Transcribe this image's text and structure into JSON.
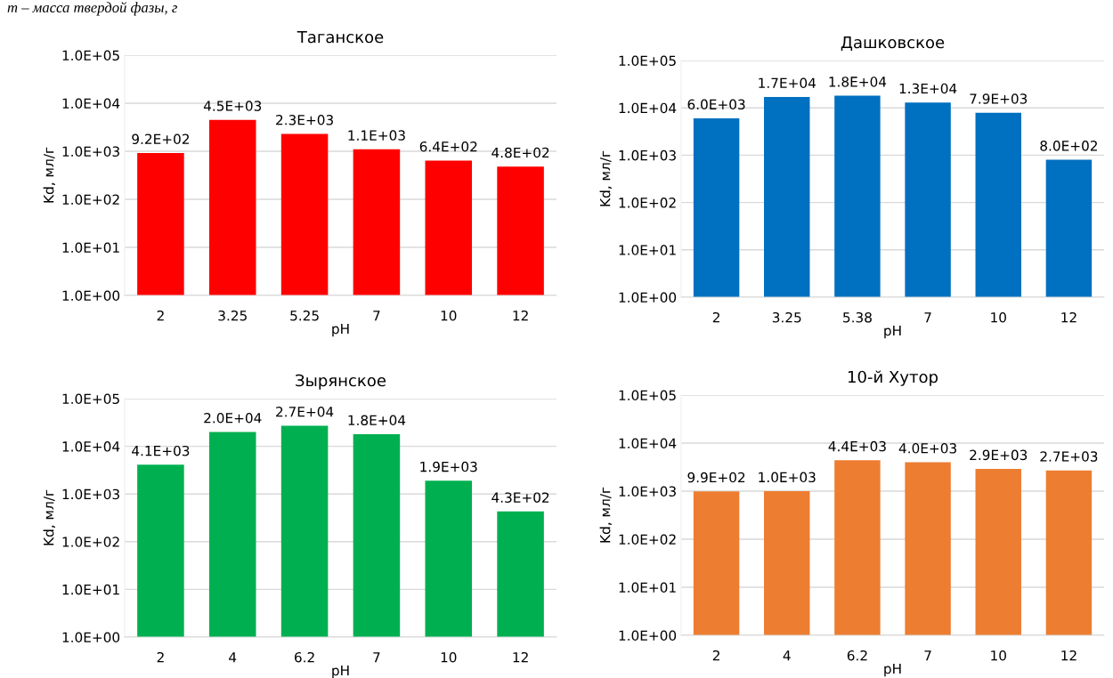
{
  "chart_data": [
    {
      "type": "bar",
      "title": "Таганское",
      "xlabel": "pH",
      "ylabel": "Kd, мл/г",
      "annotations": [
        "m – масса твердой фазы, г"
      ],
      "categories": [
        "2",
        "3.25",
        "5.25",
        "7",
        "10",
        "12"
      ],
      "values": [
        920,
        4500,
        2300,
        1100,
        640,
        480
      ],
      "value_labels": [
        "9.2E+02",
        "4.5E+03",
        "2.3E+03",
        "1.1E+03",
        "6.4E+02",
        "4.8E+02"
      ],
      "colors": [
        "#ff0000",
        "#ff0000",
        "#ff0000",
        "#ff0000",
        "#ff0000",
        "#ff0000"
      ],
      "log": true,
      "ylim": [
        1,
        100000
      ],
      "yticks": [
        {
          "value": 1,
          "label": "1.0E+00"
        },
        {
          "value": 10,
          "label": "1.0E+01"
        },
        {
          "value": 100,
          "label": "1.0E+02"
        },
        {
          "value": 1000,
          "label": "1.0E+03"
        },
        {
          "value": 10000,
          "label": "1.0E+04"
        },
        {
          "value": 100000,
          "label": "1.0E+05"
        }
      ],
      "grid": "y"
    },
    {
      "type": "bar",
      "title": "Дашковское",
      "xlabel": "pH",
      "ylabel": "Kd, мл/г",
      "categories": [
        "2",
        "3.25",
        "5.38",
        "7",
        "10",
        "12"
      ],
      "values": [
        6000,
        17000,
        18000,
        13000,
        7900,
        800
      ],
      "value_labels": [
        "6.0E+03",
        "1.7E+04",
        "1.8E+04",
        "1.3E+04",
        "7.9E+03",
        "8.0E+02"
      ],
      "colors": [
        "#0070c0",
        "#0070c0",
        "#0070c0",
        "#0070c0",
        "#0070c0",
        "#0070c0"
      ],
      "log": true,
      "ylim": [
        1,
        100000
      ],
      "yticks": [
        {
          "value": 1,
          "label": "1.0E+00"
        },
        {
          "value": 10,
          "label": "1.0E+01"
        },
        {
          "value": 100,
          "label": "1.0E+02"
        },
        {
          "value": 1000,
          "label": "1.0E+03"
        },
        {
          "value": 10000,
          "label": "1.0E+04"
        },
        {
          "value": 100000,
          "label": "1.0E+05"
        }
      ],
      "grid": "y"
    },
    {
      "type": "bar",
      "title": "Зырянское",
      "xlabel": "pH",
      "ylabel": "Kd, мл/г",
      "categories": [
        "2",
        "4",
        "6.2",
        "7",
        "10",
        "12"
      ],
      "values": [
        4100,
        20000,
        27000,
        18000,
        1900,
        430
      ],
      "value_labels": [
        "4.1E+03",
        "2.0E+04",
        "2.7E+04",
        "1.8E+04",
        "1.9E+03",
        "4.3E+02"
      ],
      "colors": [
        "#00b050",
        "#00b050",
        "#00b050",
        "#00b050",
        "#00b050",
        "#00b050"
      ],
      "log": true,
      "ylim": [
        1,
        100000
      ],
      "yticks": [
        {
          "value": 1,
          "label": "1.0E+00"
        },
        {
          "value": 10,
          "label": "1.0E+01"
        },
        {
          "value": 100,
          "label": "1.0E+02"
        },
        {
          "value": 1000,
          "label": "1.0E+03"
        },
        {
          "value": 10000,
          "label": "1.0E+04"
        },
        {
          "value": 100000,
          "label": "1.0E+05"
        }
      ],
      "grid": "y"
    },
    {
      "type": "bar",
      "title": "10-й Хутор",
      "xlabel": "pH",
      "ylabel": "Kd, мл/г",
      "categories": [
        "2",
        "4",
        "6.2",
        "7",
        "10",
        "12"
      ],
      "values": [
        990,
        1000,
        4400,
        4000,
        2900,
        2700
      ],
      "value_labels": [
        "9.9E+02",
        "1.0E+03",
        "4.4E+03",
        "4.0E+03",
        "2.9E+03",
        "2.7E+03"
      ],
      "colors": [
        "#ed7d31",
        "#ed7d31",
        "#ed7d31",
        "#ed7d31",
        "#ed7d31",
        "#ed7d31"
      ],
      "log": true,
      "ylim": [
        1,
        100000
      ],
      "yticks": [
        {
          "value": 1,
          "label": "1.0E+00"
        },
        {
          "value": 10,
          "label": "1.0E+01"
        },
        {
          "value": 100,
          "label": "1.0E+02"
        },
        {
          "value": 1000,
          "label": "1.0E+03"
        },
        {
          "value": 10000,
          "label": "1.0E+04"
        },
        {
          "value": 100000,
          "label": "1.0E+05"
        }
      ],
      "grid": "y"
    }
  ]
}
